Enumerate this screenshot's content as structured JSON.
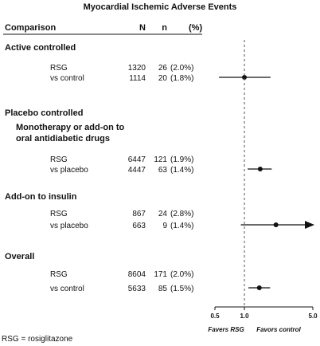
{
  "title": "Myocardial Ischemic Adverse Events",
  "columns": {
    "comparison": "Comparison",
    "n_total": "N",
    "n_events": "n",
    "pct": "(%)"
  },
  "footnote": "RSG = rosiglitazone",
  "chart_data": {
    "type": "forest",
    "title": "Myocardial Ischemic Adverse Events",
    "xscale": "log",
    "xlim": [
      0.5,
      5.0
    ],
    "xticks": [
      "0.5",
      "1.0",
      "5.0"
    ],
    "reference_line": 1.0,
    "favors_left": "Favers RSG",
    "favors_right": "Favors control",
    "groups": [
      {
        "headers": [
          "Active controlled"
        ],
        "rows": [
          {
            "label": "RSG",
            "N": "1320",
            "n": "26",
            "pct": "(2.0%)"
          },
          {
            "label": "vs control",
            "N": "1114",
            "n": "20",
            "pct": "(1.8%)"
          }
        ],
        "estimate": {
          "or": 1.0,
          "lower": 0.55,
          "upper": 1.85
        }
      },
      {
        "headers": [
          "Placebo controlled",
          "Monotherapy or add-on to",
          "oral antidiabetic drugs"
        ],
        "rows": [
          {
            "label": "RSG",
            "N": "6447",
            "n": "121",
            "pct": "(1.9%)"
          },
          {
            "label": "vs placebo",
            "N": "4447",
            "n": "63",
            "pct": "(1.4%)"
          }
        ],
        "estimate": {
          "or": 1.45,
          "lower": 1.08,
          "upper": 1.9
        }
      },
      {
        "headers": [
          "Add-on to insulin"
        ],
        "rows": [
          {
            "label": "RSG",
            "N": "867",
            "n": "24",
            "pct": "(2.8%)"
          },
          {
            "label": "vs placebo",
            "N": "663",
            "n": "9",
            "pct": "(1.4%)"
          }
        ],
        "estimate": {
          "or": 2.1,
          "lower": 0.92,
          "upper": 5.0,
          "arrow_right": true
        }
      },
      {
        "headers": [
          "Overall"
        ],
        "rows": [
          {
            "label": "RSG",
            "N": "8604",
            "n": "171",
            "pct": "(2.0%)"
          },
          {
            "label": "vs control",
            "N": "5633",
            "n": "85",
            "pct": "(1.5%)"
          }
        ],
        "estimate": {
          "or": 1.42,
          "lower": 1.1,
          "upper": 1.83
        }
      }
    ]
  }
}
